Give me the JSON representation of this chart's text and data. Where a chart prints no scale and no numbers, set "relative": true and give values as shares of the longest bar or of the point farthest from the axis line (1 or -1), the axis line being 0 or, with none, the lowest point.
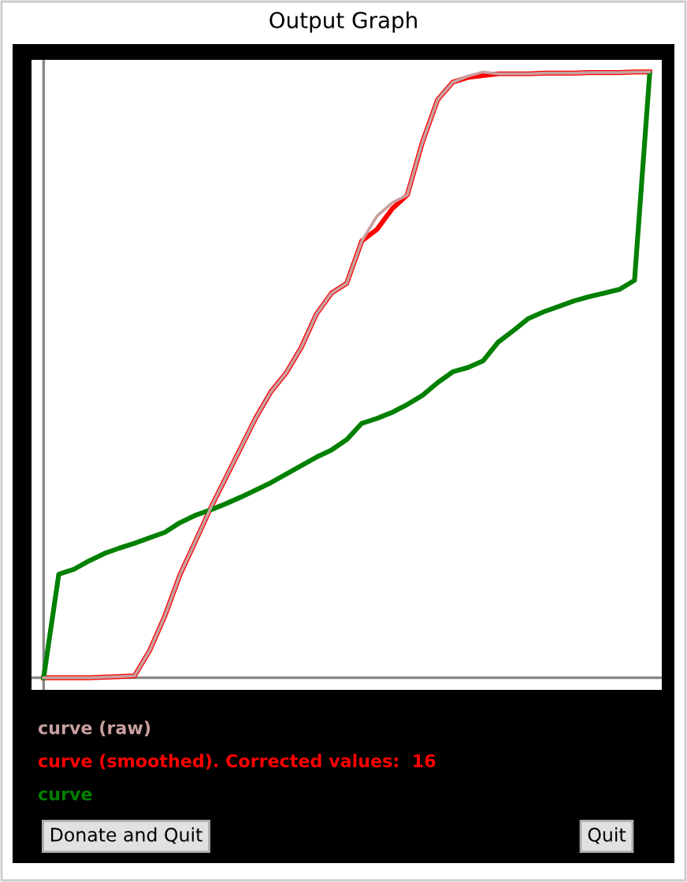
{
  "chart_data": {
    "type": "line",
    "title": "Output Graph",
    "relative": true,
    "line_style": "solid",
    "marker": "none",
    "categories": [
      null,
      null,
      null,
      null,
      null,
      null,
      null,
      null,
      null,
      null,
      null,
      null,
      null,
      null,
      null,
      null,
      null,
      null,
      null,
      null,
      null,
      null,
      null,
      null,
      null,
      null,
      null,
      null,
      null,
      null,
      null,
      null,
      null,
      null,
      null,
      null,
      null,
      null,
      null,
      null,
      null
    ],
    "series": [
      {
        "name": "curve (raw)",
        "color": "#c8a0a0",
        "values": [
          0,
          0,
          0,
          0,
          0.001,
          0.002,
          0.003,
          0.045,
          0.102,
          0.17,
          0.224,
          0.279,
          0.329,
          0.379,
          0.429,
          0.472,
          0.503,
          0.545,
          0.6,
          0.635,
          0.651,
          0.721,
          0.762,
          0.784,
          0.797,
          0.884,
          0.954,
          0.983,
          0.993,
          1,
          0.997,
          0.997,
          0.997,
          0.998,
          0.998,
          0.998,
          0.999,
          0.999,
          0.999,
          1,
          1
        ]
      },
      {
        "name": "curve (smoothed). Corrected values:  16",
        "color": "#ff0000",
        "values": [
          0,
          0,
          0,
          0,
          0.001,
          0.002,
          0.003,
          0.045,
          0.102,
          0.17,
          0.224,
          0.279,
          0.329,
          0.379,
          0.429,
          0.472,
          0.503,
          0.545,
          0.6,
          0.635,
          0.651,
          0.721,
          0.74,
          0.774,
          0.797,
          0.884,
          0.954,
          0.983,
          0.991,
          0.994,
          0.997,
          0.997,
          0.997,
          0.998,
          0.998,
          0.998,
          0.999,
          0.999,
          0.999,
          1,
          1
        ]
      },
      {
        "name": "curve",
        "color": "#008000",
        "values": [
          0,
          0.171,
          0.179,
          0.193,
          0.205,
          0.214,
          0.222,
          0.231,
          0.24,
          0.256,
          0.268,
          0.277,
          0.287,
          0.298,
          0.31,
          0.322,
          0.336,
          0.35,
          0.364,
          0.376,
          0.393,
          0.42,
          0.428,
          0.438,
          0.451,
          0.466,
          0.487,
          0.505,
          0.512,
          0.523,
          0.554,
          0.573,
          0.593,
          0.604,
          0.613,
          0.622,
          0.629,
          0.635,
          0.641,
          0.656,
          0.997
        ]
      }
    ],
    "annotations": [
      "Donate and Quit",
      "Quit"
    ]
  }
}
